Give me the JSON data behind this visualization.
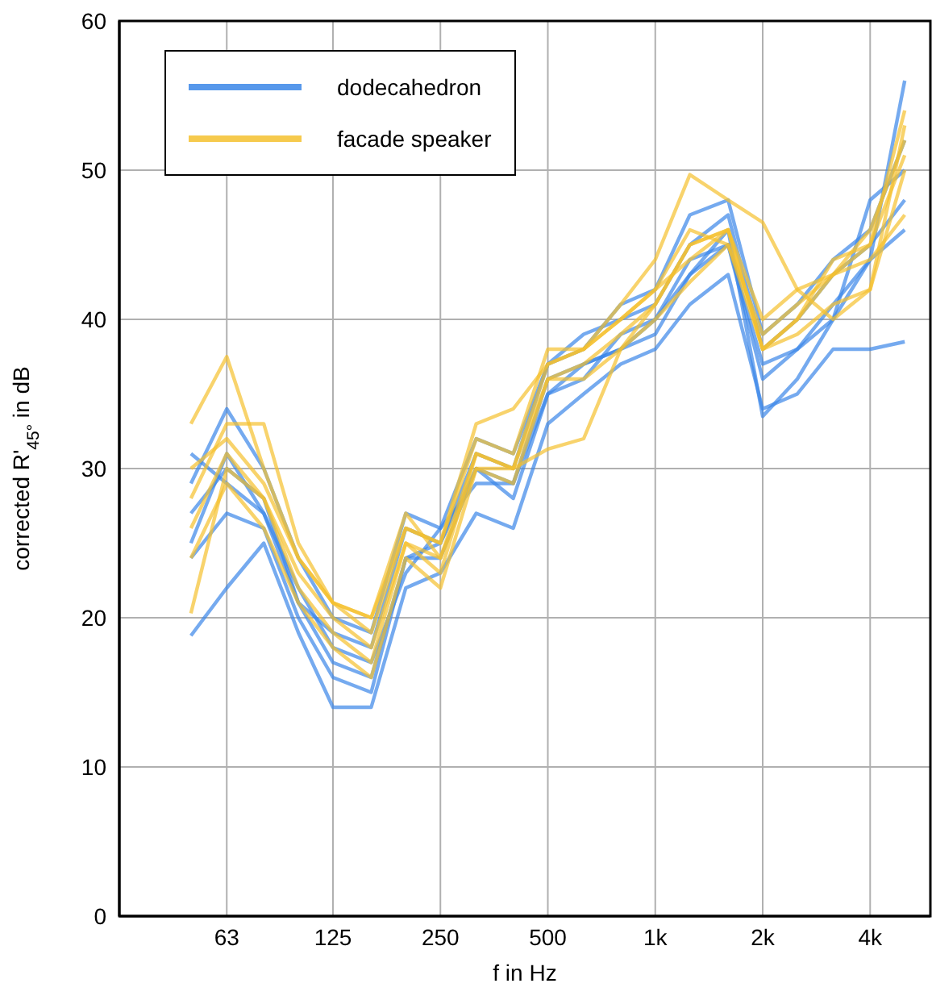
{
  "chart_data": {
    "type": "line",
    "xlabel": "f in Hz",
    "ylabel": "corrected R'$_{45°}$ in dB",
    "x": [
      50,
      63,
      80,
      100,
      125,
      160,
      200,
      250,
      315,
      400,
      500,
      630,
      800,
      1000,
      1250,
      1600,
      2000,
      2500,
      3150,
      4000,
      5000
    ],
    "log": "x",
    "xlim": [
      31.5,
      5900
    ],
    "xticks": [
      63,
      125,
      250,
      500,
      {
        "value": 1000,
        "label": "1k"
      },
      {
        "value": 2000,
        "label": "2k"
      },
      {
        "value": 4000,
        "label": "4k"
      }
    ],
    "ylim": [
      0,
      60
    ],
    "yticks": [
      0,
      10,
      20,
      30,
      40,
      50,
      60
    ],
    "grid": true,
    "legend": "top left",
    "marker": "none",
    "line_style": "solid",
    "series": [
      {
        "name": "dodecahedron",
        "color": "#3a86e8",
        "values": [
          18.8,
          22,
          25,
          19,
          14,
          14,
          22,
          23,
          27,
          26,
          33,
          35,
          37,
          38,
          41,
          43,
          34,
          35,
          38,
          38,
          38.5
        ]
      },
      {
        "color": "#3a86e8",
        "values": [
          25,
          31,
          27,
          21,
          17,
          16,
          24,
          24,
          30,
          28,
          35,
          37,
          38,
          40,
          43,
          45,
          37,
          38,
          40,
          44,
          56
        ]
      },
      {
        "color": "#3a86e8",
        "values": [
          29,
          34,
          30,
          24,
          20,
          19,
          27,
          26,
          32,
          31,
          37,
          38,
          41,
          42,
          47,
          48,
          39,
          41,
          44,
          46,
          52
        ]
      },
      {
        "color": "#3a86e8",
        "values": [
          31,
          29,
          27,
          22,
          18,
          17,
          23,
          26,
          29,
          29,
          36,
          37,
          38,
          39,
          43,
          46,
          33.5,
          36,
          40,
          48,
          50
        ]
      },
      {
        "color": "#3a86e8",
        "values": [
          27,
          30,
          28,
          21,
          19,
          18,
          26,
          25,
          31,
          30,
          37,
          39,
          40,
          41,
          45,
          47,
          38,
          40,
          43,
          45,
          48
        ]
      },
      {
        "color": "#3a86e8",
        "values": [
          24,
          27,
          26,
          20,
          16,
          15,
          24,
          25,
          30,
          29,
          35,
          36,
          39,
          40,
          44,
          45,
          36,
          38,
          41,
          44,
          46
        ]
      },
      {
        "name": "facade speaker",
        "color": "#f5c12e",
        "values": [
          33,
          37.5,
          30,
          24,
          21,
          20,
          26,
          25,
          33,
          34,
          37,
          38,
          41,
          44,
          49.7,
          48,
          46.5,
          42,
          40,
          42,
          53
        ]
      },
      {
        "color": "#f5c12e",
        "values": [
          20.3,
          30,
          28,
          23,
          20,
          18,
          25,
          23,
          31,
          30,
          31.3,
          32,
          38,
          41,
          45,
          46,
          38,
          40,
          43,
          46,
          52
        ]
      },
      {
        "color": "#f5c12e",
        "values": [
          28,
          33,
          33,
          25,
          21,
          20,
          27,
          24,
          31,
          30,
          37,
          38,
          40,
          42,
          46,
          45,
          39,
          41,
          43,
          45,
          54
        ]
      },
      {
        "color": "#f5c12e",
        "values": [
          26,
          31,
          28,
          22,
          19,
          17,
          25,
          24,
          30,
          30,
          36,
          37,
          39,
          41,
          45,
          46,
          40,
          42,
          43,
          44,
          47
        ]
      },
      {
        "color": "#f5c12e",
        "values": [
          30,
          32,
          29,
          24,
          21,
          19,
          26,
          25,
          32,
          31,
          38,
          38,
          40,
          42,
          44,
          46,
          38,
          40,
          44,
          45,
          51
        ]
      },
      {
        "color": "#f5c12e",
        "values": [
          24,
          29,
          26,
          21,
          18,
          16,
          24,
          22,
          30,
          29,
          36,
          36,
          38,
          40,
          42.5,
          45,
          38,
          39,
          41,
          42,
          50
        ]
      }
    ]
  }
}
